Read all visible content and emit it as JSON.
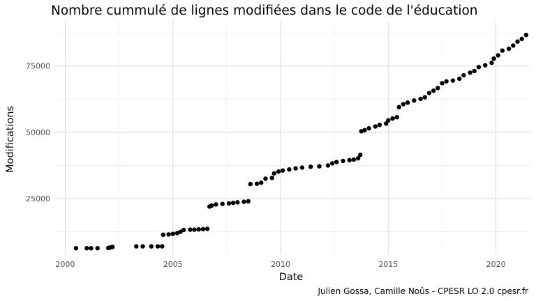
{
  "chart_data": {
    "type": "scatter",
    "title": "Nombre cummulé de lignes modifiées dans le code de l'éducation",
    "xlabel": "Date",
    "ylabel": "Modifications",
    "caption": "Julien Gossa, Camille Noûs - CPESR LO 2.0 cpesr.fr",
    "x_ticks": [
      "2000",
      "2005",
      "2010",
      "2015",
      "2020"
    ],
    "y_ticks": [
      "25000",
      "50000",
      "75000"
    ],
    "xlim": [
      1999.5,
      2021.6
    ],
    "ylim": [
      4000,
      92000
    ],
    "grid": true,
    "point_color": "#000000",
    "series": [
      {
        "points": [
          [
            2000.5,
            6300
          ],
          [
            2001.0,
            6300
          ],
          [
            2001.2,
            6300
          ],
          [
            2001.5,
            6300
          ],
          [
            2002.0,
            6400
          ],
          [
            2002.1,
            6600
          ],
          [
            2002.2,
            6800
          ],
          [
            2003.3,
            7000
          ],
          [
            2003.6,
            7000
          ],
          [
            2004.0,
            7000
          ],
          [
            2004.3,
            7000
          ],
          [
            2004.5,
            7000
          ],
          [
            2004.55,
            11400
          ],
          [
            2004.8,
            11500
          ],
          [
            2005.0,
            11700
          ],
          [
            2005.2,
            12000
          ],
          [
            2005.35,
            12500
          ],
          [
            2005.5,
            13200
          ],
          [
            2005.8,
            13300
          ],
          [
            2006.0,
            13300
          ],
          [
            2006.2,
            13400
          ],
          [
            2006.4,
            13500
          ],
          [
            2006.6,
            13600
          ],
          [
            2006.7,
            22000
          ],
          [
            2006.8,
            22400
          ],
          [
            2007.0,
            22800
          ],
          [
            2007.3,
            23000
          ],
          [
            2007.6,
            23200
          ],
          [
            2007.8,
            23400
          ],
          [
            2008.0,
            23600
          ],
          [
            2008.3,
            23800
          ],
          [
            2008.5,
            24000
          ],
          [
            2008.6,
            30500
          ],
          [
            2008.9,
            30600
          ],
          [
            2009.1,
            31000
          ],
          [
            2009.3,
            32500
          ],
          [
            2009.6,
            32800
          ],
          [
            2009.7,
            34500
          ],
          [
            2009.9,
            35200
          ],
          [
            2010.1,
            35600
          ],
          [
            2010.4,
            36000
          ],
          [
            2010.7,
            36400
          ],
          [
            2011.0,
            36700
          ],
          [
            2011.4,
            37000
          ],
          [
            2011.8,
            37200
          ],
          [
            2012.2,
            37500
          ],
          [
            2012.4,
            38300
          ],
          [
            2012.6,
            38800
          ],
          [
            2012.9,
            39200
          ],
          [
            2013.2,
            39500
          ],
          [
            2013.4,
            39700
          ],
          [
            2013.6,
            40200
          ],
          [
            2013.7,
            41500
          ],
          [
            2013.75,
            50400
          ],
          [
            2013.9,
            50800
          ],
          [
            2014.1,
            51500
          ],
          [
            2014.4,
            52200
          ],
          [
            2014.6,
            52800
          ],
          [
            2014.9,
            53300
          ],
          [
            2015.0,
            54500
          ],
          [
            2015.2,
            55200
          ],
          [
            2015.4,
            55700
          ],
          [
            2015.5,
            59500
          ],
          [
            2015.7,
            60600
          ],
          [
            2015.9,
            61200
          ],
          [
            2016.2,
            62000
          ],
          [
            2016.5,
            62600
          ],
          [
            2016.7,
            63200
          ],
          [
            2016.9,
            64800
          ],
          [
            2017.1,
            65700
          ],
          [
            2017.3,
            66700
          ],
          [
            2017.5,
            68500
          ],
          [
            2017.7,
            69200
          ],
          [
            2018.0,
            69500
          ],
          [
            2018.3,
            70200
          ],
          [
            2018.5,
            71500
          ],
          [
            2018.8,
            72500
          ],
          [
            2019.0,
            73100
          ],
          [
            2019.2,
            74600
          ],
          [
            2019.5,
            75300
          ],
          [
            2019.8,
            76200
          ],
          [
            2019.9,
            77800
          ],
          [
            2020.1,
            79000
          ],
          [
            2020.3,
            80800
          ],
          [
            2020.6,
            81500
          ],
          [
            2020.8,
            82700
          ],
          [
            2021.0,
            84200
          ],
          [
            2021.2,
            85200
          ],
          [
            2021.4,
            86700
          ]
        ]
      }
    ]
  }
}
